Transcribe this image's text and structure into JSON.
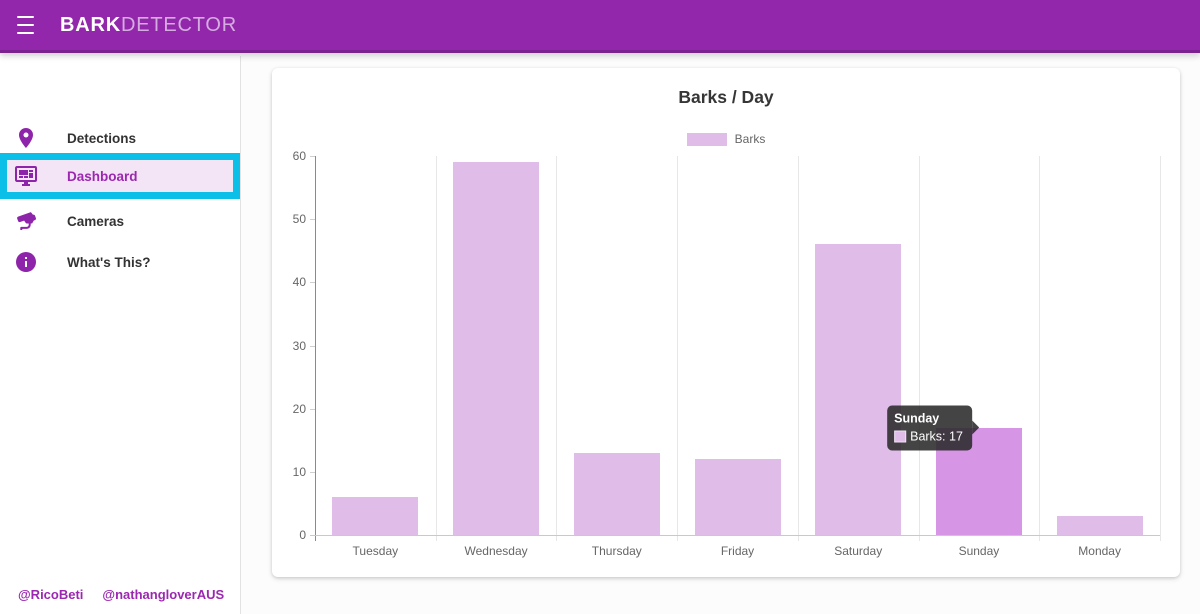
{
  "header": {
    "title_bold": "BARK",
    "title_light": "DETECTOR"
  },
  "sidebar": {
    "items": [
      {
        "label": "Detections",
        "icon": "map-marker-icon",
        "active": false
      },
      {
        "label": "Dashboard",
        "icon": "monitor-dashboard-icon",
        "active": true
      },
      {
        "label": "Cameras",
        "icon": "cctv-camera-icon",
        "active": false
      },
      {
        "label": "What's This?",
        "icon": "info-icon",
        "active": false
      }
    ],
    "footer_links": [
      "@RicoBeti",
      "@nathangloverAUS"
    ]
  },
  "colors": {
    "appbar_purple": "#9227ac",
    "accent_purple": "#9c27b0",
    "highlight_cyan": "#0cbfe9",
    "active_item_bg": "#f3e5f5"
  },
  "chart_data": {
    "type": "bar",
    "title": "Barks / Day",
    "categories": [
      "Tuesday",
      "Wednesday",
      "Thursday",
      "Friday",
      "Saturday",
      "Sunday",
      "Monday"
    ],
    "series": [
      {
        "name": "Barks",
        "values": [
          6,
          59,
          13,
          12,
          46,
          17,
          3
        ]
      }
    ],
    "ylim": [
      0,
      60
    ],
    "ytick_step": 10,
    "grid": "vertical-only",
    "legend_position": "top-center",
    "bar_color": "#dfbde8",
    "bar_hover_color": "#d795e6",
    "hovered_index": 5,
    "tooltip": {
      "title": "Sunday",
      "label": "Barks: 17"
    }
  }
}
